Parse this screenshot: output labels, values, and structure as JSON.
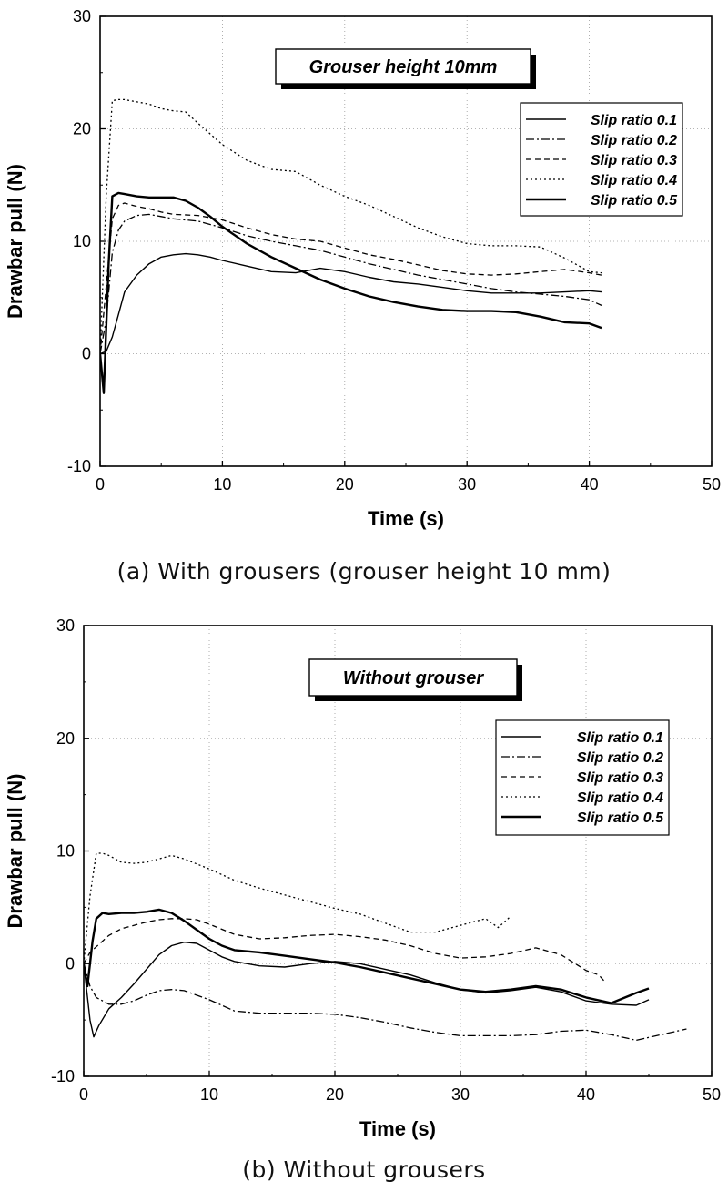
{
  "chart_data": [
    {
      "type": "line",
      "title": "Grouser height 10mm",
      "xlabel": "Time (s)",
      "ylabel": "Drawbar pull (N)",
      "xlim": [
        0,
        50
      ],
      "ylim": [
        -10,
        30
      ],
      "xticks": [
        "0",
        "10",
        "20",
        "30",
        "40",
        "50"
      ],
      "yticks": [
        "-10",
        "0",
        "10",
        "20",
        "30"
      ],
      "grid": true,
      "legend_position": "top-right",
      "caption": "(a) With grousers (grouser height 10 mm)",
      "series": [
        {
          "name": "Slip ratio 0.1",
          "style": "solid-thin",
          "x": [
            0,
            0.5,
            1,
            1.5,
            2,
            3,
            4,
            5,
            6,
            7,
            8,
            9,
            10,
            12,
            14,
            16,
            18,
            20,
            22,
            24,
            26,
            28,
            30,
            32,
            34,
            36,
            38,
            40,
            41
          ],
          "y": [
            0,
            0.2,
            1.5,
            3.5,
            5.5,
            7,
            8,
            8.6,
            8.8,
            8.9,
            8.8,
            8.6,
            8.3,
            7.8,
            7.3,
            7.2,
            7.6,
            7.3,
            6.8,
            6.4,
            6.2,
            5.9,
            5.6,
            5.4,
            5.4,
            5.4,
            5.5,
            5.6,
            5.5
          ]
        },
        {
          "name": "Slip ratio 0.2",
          "style": "dashdot",
          "x": [
            0,
            0.5,
            1,
            1.5,
            2,
            3,
            4,
            5,
            6,
            8,
            10,
            12,
            14,
            16,
            18,
            20,
            22,
            24,
            26,
            28,
            30,
            32,
            34,
            36,
            38,
            40,
            41
          ],
          "y": [
            0,
            3,
            9,
            11,
            11.8,
            12.3,
            12.4,
            12.2,
            12,
            11.8,
            11.2,
            10.5,
            10,
            9.6,
            9.2,
            8.6,
            8,
            7.5,
            7,
            6.6,
            6.2,
            5.8,
            5.5,
            5.3,
            5.1,
            4.8,
            4.3
          ]
        },
        {
          "name": "Slip ratio 0.3",
          "style": "dashed",
          "x": [
            0,
            0.5,
            1,
            1.5,
            2,
            3,
            4,
            5,
            6,
            8,
            10,
            12,
            14,
            16,
            18,
            20,
            22,
            24,
            26,
            28,
            30,
            32,
            34,
            36,
            38,
            40,
            41
          ],
          "y": [
            0,
            6,
            12,
            13.2,
            13.4,
            13.1,
            12.9,
            12.6,
            12.4,
            12.3,
            11.9,
            11.2,
            10.6,
            10.2,
            10,
            9.4,
            8.8,
            8.4,
            7.9,
            7.4,
            7.1,
            7,
            7.1,
            7.3,
            7.5,
            7.2,
            7
          ]
        },
        {
          "name": "Slip ratio 0.4",
          "style": "dotted",
          "x": [
            0,
            0.5,
            1,
            1.5,
            2,
            3,
            4,
            5,
            6,
            7,
            8,
            10,
            12,
            14,
            16,
            18,
            20,
            22,
            24,
            26,
            28,
            30,
            32,
            34,
            36,
            38,
            40,
            41
          ],
          "y": [
            0,
            14,
            22.5,
            22.6,
            22.6,
            22.4,
            22.2,
            21.8,
            21.6,
            21.5,
            20.5,
            18.6,
            17.2,
            16.4,
            16.2,
            15,
            14,
            13.2,
            12.2,
            11.2,
            10.4,
            9.8,
            9.6,
            9.6,
            9.5,
            8.5,
            7.3,
            7.2
          ]
        },
        {
          "name": "Slip ratio 0.5",
          "style": "solid-thick",
          "x": [
            0,
            0.3,
            0.7,
            1,
            1.5,
            2,
            3,
            4,
            5,
            6,
            7,
            8,
            9,
            10,
            12,
            14,
            16,
            18,
            20,
            22,
            24,
            26,
            28,
            30,
            32,
            34,
            36,
            38,
            40,
            41
          ],
          "y": [
            0,
            -3.5,
            8,
            14,
            14.3,
            14.2,
            14,
            13.9,
            13.9,
            13.9,
            13.6,
            13,
            12.2,
            11.3,
            9.8,
            8.6,
            7.6,
            6.6,
            5.8,
            5.1,
            4.6,
            4.2,
            3.9,
            3.8,
            3.8,
            3.7,
            3.3,
            2.8,
            2.7,
            2.3
          ]
        }
      ]
    },
    {
      "type": "line",
      "title": "Without grouser",
      "xlabel": "Time (s)",
      "ylabel": "Drawbar pull (N)",
      "xlim": [
        0,
        50
      ],
      "ylim": [
        -10,
        30
      ],
      "xticks": [
        "0",
        "10",
        "20",
        "30",
        "40",
        "50"
      ],
      "yticks": [
        "-10",
        "0",
        "10",
        "20",
        "30"
      ],
      "grid": true,
      "legend_position": "right",
      "caption": "(b) Without grousers",
      "series": [
        {
          "name": "Slip ratio 0.1",
          "style": "solid-thin",
          "x": [
            0,
            0.5,
            0.8,
            1.2,
            2,
            3,
            4,
            5,
            6,
            7,
            8,
            9,
            10,
            11,
            12,
            14,
            16,
            18,
            20,
            22,
            24,
            26,
            28,
            30,
            32,
            34,
            36,
            38,
            40,
            42,
            44,
            45
          ],
          "y": [
            0,
            -5,
            -6.5,
            -5.5,
            -4,
            -3,
            -1.8,
            -0.5,
            0.8,
            1.6,
            1.9,
            1.8,
            1.2,
            0.6,
            0.2,
            -0.2,
            -0.3,
            0,
            0.2,
            0,
            -0.5,
            -1,
            -1.7,
            -2.3,
            -2.6,
            -2.4,
            -2.1,
            -2.5,
            -3.3,
            -3.6,
            -3.7,
            -3.2
          ]
        },
        {
          "name": "Slip ratio 0.2",
          "style": "dashdot",
          "x": [
            0,
            0.5,
            1,
            2,
            3,
            4,
            5,
            6,
            7,
            8,
            10,
            12,
            14,
            16,
            18,
            20,
            22,
            24,
            26,
            28,
            30,
            32,
            34,
            36,
            38,
            40,
            42,
            44,
            46,
            48
          ],
          "y": [
            0,
            -2,
            -3,
            -3.6,
            -3.6,
            -3.3,
            -2.8,
            -2.4,
            -2.3,
            -2.4,
            -3.2,
            -4.2,
            -4.4,
            -4.4,
            -4.4,
            -4.5,
            -4.8,
            -5.2,
            -5.7,
            -6.1,
            -6.4,
            -6.4,
            -6.4,
            -6.3,
            -6,
            -5.9,
            -6.3,
            -6.8,
            -6.3,
            -5.8
          ]
        },
        {
          "name": "Slip ratio 0.3",
          "style": "dashed",
          "x": [
            0,
            0.5,
            1,
            2,
            3,
            4,
            5,
            6,
            7,
            8,
            9,
            10,
            12,
            14,
            16,
            18,
            20,
            22,
            24,
            26,
            28,
            30,
            32,
            34,
            36,
            38,
            40,
            41,
            41.5
          ],
          "y": [
            0,
            1,
            1.5,
            2.5,
            3.1,
            3.4,
            3.7,
            3.9,
            4,
            4,
            3.9,
            3.5,
            2.6,
            2.2,
            2.3,
            2.5,
            2.6,
            2.4,
            2.1,
            1.6,
            0.9,
            0.5,
            0.6,
            0.9,
            1.4,
            0.8,
            -0.6,
            -1,
            -1.6
          ]
        },
        {
          "name": "Slip ratio 0.4",
          "style": "dotted",
          "x": [
            0,
            0.5,
            1,
            1.5,
            2,
            3,
            4,
            5,
            6,
            7,
            8,
            10,
            12,
            14,
            16,
            18,
            20,
            22,
            24,
            26,
            28,
            30,
            32,
            33,
            34
          ],
          "y": [
            0,
            6,
            9.8,
            9.8,
            9.6,
            9,
            8.9,
            9,
            9.3,
            9.6,
            9.3,
            8.4,
            7.4,
            6.7,
            6.1,
            5.5,
            4.9,
            4.4,
            3.6,
            2.8,
            2.8,
            3.4,
            4,
            3.2,
            4.2
          ]
        },
        {
          "name": "Slip ratio 0.5",
          "style": "solid-thick",
          "x": [
            0,
            0.3,
            0.7,
            1,
            1.5,
            2,
            3,
            4,
            5,
            6,
            7,
            8,
            9,
            10,
            11,
            12,
            14,
            16,
            18,
            20,
            22,
            24,
            26,
            28,
            30,
            32,
            34,
            36,
            38,
            40,
            42,
            44,
            45
          ],
          "y": [
            0,
            -2,
            2,
            4,
            4.5,
            4.4,
            4.5,
            4.5,
            4.6,
            4.8,
            4.5,
            3.8,
            3,
            2.2,
            1.6,
            1.2,
            1,
            0.7,
            0.4,
            0.1,
            -0.3,
            -0.8,
            -1.3,
            -1.8,
            -2.3,
            -2.5,
            -2.3,
            -2,
            -2.3,
            -3,
            -3.5,
            -2.6,
            -2.2
          ]
        }
      ]
    }
  ]
}
